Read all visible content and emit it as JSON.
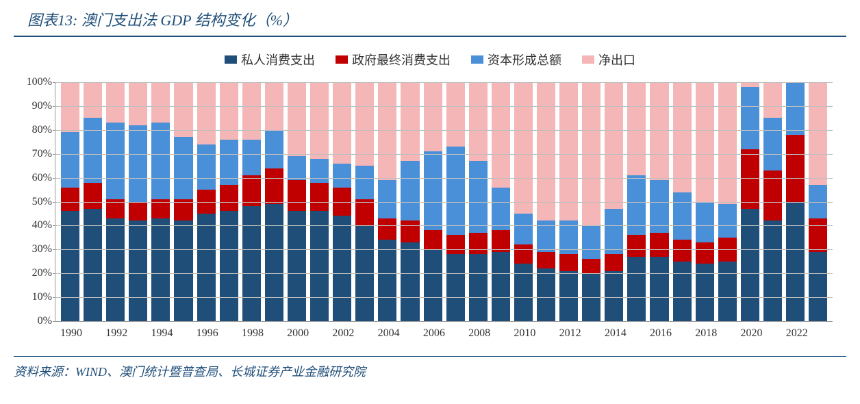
{
  "title": "图表13:  澳门支出法 GDP 结构变化（%）",
  "source": "资料来源：WIND、澳门统计暨普查局、长城证券产业金融研究院",
  "legend": [
    {
      "label": "私人消费支出",
      "color": "#1f4e79"
    },
    {
      "label": "政府最终消费支出",
      "color": "#c00000"
    },
    {
      "label": "资本形成总额",
      "color": "#4a90d9"
    },
    {
      "label": "净出口",
      "color": "#f4b6b6"
    }
  ],
  "chart": {
    "type": "stacked-bar-100",
    "ylim": [
      0,
      100
    ],
    "ytick_step": 10,
    "ylabel_suffix": "%",
    "background_color": "#ffffff",
    "grid_color": "#bfbfbf",
    "axis_color": "#999999",
    "text_color": "#333333",
    "tick_fontsize": 16,
    "title_color": "#1f4e79",
    "title_fontsize": 22,
    "categories": [
      "1990",
      "1991",
      "1992",
      "1993",
      "1994",
      "1995",
      "1996",
      "1997",
      "1998",
      "1999",
      "2000",
      "2001",
      "2002",
      "2003",
      "2004",
      "2005",
      "2006",
      "2007",
      "2008",
      "2009",
      "2010",
      "2011",
      "2012",
      "2013",
      "2014",
      "2015",
      "2016",
      "2017",
      "2018",
      "2019",
      "2020",
      "2021",
      "2022",
      "2023"
    ],
    "x_label_every": 2,
    "series": [
      {
        "name": "private_consumption",
        "color": "#1f4e79",
        "values": [
          46,
          47,
          43,
          42,
          43,
          42,
          45,
          46,
          48,
          49,
          46,
          46,
          44,
          40,
          34,
          33,
          30,
          28,
          28,
          29,
          24,
          22,
          21,
          20,
          21,
          27,
          27,
          25,
          24,
          25,
          47,
          42,
          50,
          29
        ]
      },
      {
        "name": "gov_consumption",
        "color": "#c00000",
        "values": [
          10,
          11,
          8,
          8,
          8,
          9,
          10,
          11,
          13,
          15,
          13,
          12,
          12,
          11,
          9,
          9,
          8,
          8,
          9,
          9,
          8,
          7,
          7,
          6,
          7,
          9,
          10,
          9,
          9,
          10,
          25,
          21,
          28,
          14
        ]
      },
      {
        "name": "capital_formation",
        "color": "#4a90d9",
        "values": [
          23,
          27,
          32,
          32,
          32,
          26,
          19,
          19,
          15,
          16,
          10,
          10,
          10,
          14,
          16,
          25,
          33,
          37,
          30,
          18,
          13,
          13,
          14,
          14,
          19,
          25,
          22,
          20,
          17,
          14,
          26,
          22,
          22,
          14
        ]
      },
      {
        "name": "net_exports",
        "color": "#f4b6b6",
        "values": [
          21,
          15,
          17,
          18,
          17,
          23,
          26,
          24,
          24,
          20,
          31,
          32,
          34,
          35,
          41,
          33,
          29,
          27,
          33,
          44,
          55,
          58,
          58,
          60,
          53,
          39,
          41,
          46,
          50,
          51,
          2,
          15,
          0,
          43
        ]
      }
    ]
  }
}
